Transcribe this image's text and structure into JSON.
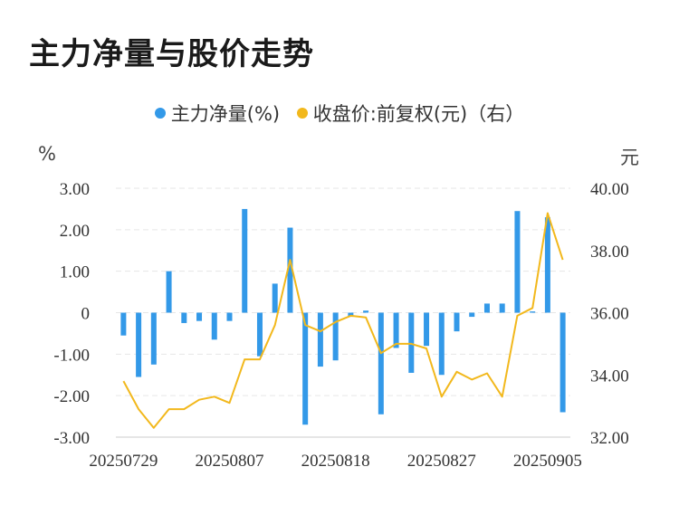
{
  "title": "主力净量与股价走势",
  "legend": {
    "bar_label": "主力净量(%)",
    "line_label": "收盘价:前复权(元)（右）"
  },
  "units": {
    "left": "%",
    "right": "元"
  },
  "colors": {
    "bar": "#3399e8",
    "line": "#f2b81c",
    "grid": "#e6e6e6"
  },
  "chart_data": {
    "type": "bar+line",
    "title": "主力净量与股价走势",
    "x_tick_labels": [
      "20250729",
      "20250807",
      "20250818",
      "20250827",
      "20250905"
    ],
    "left_axis": {
      "unit": "%",
      "ylim": [
        -3,
        3
      ],
      "ticks": [
        "3.00",
        "2.00",
        "1.00",
        "0",
        "-1.00",
        "-2.00",
        "-3.00"
      ]
    },
    "right_axis": {
      "unit": "元",
      "ylim": [
        32,
        40
      ],
      "ticks": [
        "40.00",
        "38.00",
        "36.00",
        "34.00",
        "32.00"
      ]
    },
    "series": [
      {
        "name": "主力净量(%)",
        "type": "bar",
        "axis": "left",
        "values": [
          -0.55,
          -1.55,
          -1.25,
          1.0,
          -0.25,
          -0.2,
          -0.65,
          -0.2,
          2.5,
          -1.05,
          0.7,
          2.05,
          -2.7,
          -1.3,
          -1.15,
          -0.1,
          0.05,
          -2.45,
          -0.85,
          -1.45,
          -0.8,
          -1.5,
          -0.45,
          -0.1,
          0.22,
          0.22,
          2.45,
          0.03,
          2.3,
          -2.4
        ]
      },
      {
        "name": "收盘价:前复权(元)（右）",
        "type": "line",
        "axis": "right",
        "values": [
          33.8,
          32.9,
          32.3,
          32.9,
          32.9,
          33.2,
          33.3,
          33.1,
          34.5,
          34.5,
          35.6,
          37.7,
          35.6,
          35.4,
          35.7,
          35.9,
          35.85,
          34.7,
          35.0,
          35.0,
          34.85,
          33.3,
          34.1,
          33.85,
          34.05,
          33.3,
          35.9,
          36.15,
          39.2,
          37.7
        ]
      }
    ],
    "grid": true,
    "legend_position": "top-center"
  }
}
